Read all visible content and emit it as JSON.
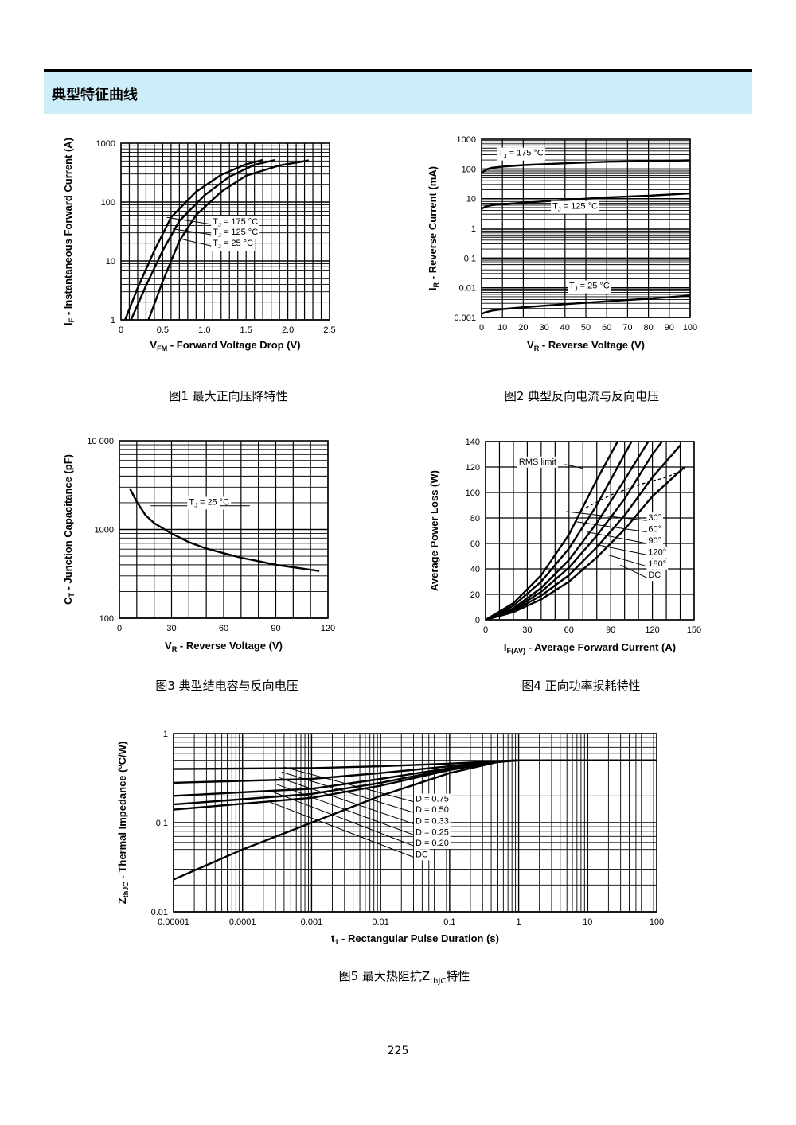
{
  "header": {
    "title": "典型特征曲线"
  },
  "page_number": "225",
  "chart_data": [
    {
      "id": "fig1",
      "type": "line",
      "caption": "图1  最大正向压降特性",
      "xlabel_main": "V",
      "xlabel_sub": "FM",
      "xlabel_rest": " - Forward Voltage Drop (V)",
      "ylabel_main": "I",
      "ylabel_sub": "F",
      "ylabel_rest": " - Instantaneous Forward Current (A)",
      "xlim": [
        0,
        2.5
      ],
      "ylim": [
        1,
        1000
      ],
      "yscale": "log",
      "x_ticks": [
        {
          "v": 0,
          "label": "0"
        },
        {
          "v": 0.5,
          "label": "0.5"
        },
        {
          "v": 1.0,
          "label": "1.0"
        },
        {
          "v": 1.5,
          "label": "1.5"
        },
        {
          "v": 2.0,
          "label": "2.0"
        },
        {
          "v": 2.5,
          "label": "2.5"
        }
      ],
      "y_ticks": [
        {
          "v": 1,
          "label": "1"
        },
        {
          "v": 10,
          "label": "10"
        },
        {
          "v": 100,
          "label": "100"
        },
        {
          "v": 1000,
          "label": "1000"
        }
      ],
      "grid": true,
      "series": [
        {
          "name": "TJ = 175 °C",
          "x": [
            0.05,
            0.2,
            0.4,
            0.6,
            0.9,
            1.2,
            1.5,
            1.7
          ],
          "y": [
            1,
            3.5,
            15,
            55,
            150,
            290,
            440,
            520
          ]
        },
        {
          "name": "TJ = 125 °C",
          "x": [
            0.12,
            0.3,
            0.5,
            0.7,
            1.0,
            1.3,
            1.6,
            1.85
          ],
          "y": [
            1,
            3.8,
            15,
            48,
            130,
            270,
            430,
            520
          ]
        },
        {
          "name": "TJ = 25 °C",
          "x": [
            0.33,
            0.5,
            0.7,
            0.9,
            1.2,
            1.5,
            1.9,
            2.25
          ],
          "y": [
            1,
            4.5,
            22,
            60,
            150,
            280,
            420,
            510
          ]
        }
      ],
      "annotations": [
        {
          "main": "T",
          "sub": "J",
          "rest": " = 175 °C",
          "x": 1.1,
          "y": 42
        },
        {
          "main": "T",
          "sub": "J",
          "rest": " = 125 °C",
          "x": 1.1,
          "y": 28
        },
        {
          "main": "T",
          "sub": "J",
          "rest": " = 25 °C",
          "x": 1.1,
          "y": 18
        }
      ]
    },
    {
      "id": "fig2",
      "type": "line",
      "caption": "图2  典型反向电流与反向电压",
      "xlabel_main": "V",
      "xlabel_sub": "R",
      "xlabel_rest": " - Reverse Voltage (V)",
      "ylabel_main": "I",
      "ylabel_sub": "R",
      "ylabel_rest": " - Reverse Current (mA)",
      "xlim": [
        0,
        100
      ],
      "ylim": [
        0.001,
        1000
      ],
      "yscale": "log",
      "x_ticks": [
        {
          "v": 0,
          "label": "0"
        },
        {
          "v": 10,
          "label": "10"
        },
        {
          "v": 20,
          "label": "20"
        },
        {
          "v": 30,
          "label": "30"
        },
        {
          "v": 40,
          "label": "40"
        },
        {
          "v": 50,
          "label": "50"
        },
        {
          "v": 60,
          "label": "60"
        },
        {
          "v": 70,
          "label": "70"
        },
        {
          "v": 80,
          "label": "80"
        },
        {
          "v": 90,
          "label": "90"
        },
        {
          "v": 100,
          "label": "100"
        }
      ],
      "y_ticks": [
        {
          "v": 0.001,
          "label": "0.001"
        },
        {
          "v": 0.01,
          "label": "0.01"
        },
        {
          "v": 0.1,
          "label": "0.1"
        },
        {
          "v": 1,
          "label": "1"
        },
        {
          "v": 10,
          "label": "10"
        },
        {
          "v": 100,
          "label": "100"
        },
        {
          "v": 1000,
          "label": "1000"
        }
      ],
      "grid": true,
      "series": [
        {
          "name": "TJ = 175 °C",
          "x": [
            0,
            2,
            5,
            10,
            20,
            40,
            60,
            80,
            100
          ],
          "y": [
            70,
            95,
            110,
            120,
            135,
            155,
            175,
            185,
            195
          ]
        },
        {
          "name": "TJ = 125 °C",
          "x": [
            0,
            2,
            5,
            10,
            20,
            40,
            60,
            80,
            100
          ],
          "y": [
            4.5,
            5.5,
            6.0,
            6.5,
            7.3,
            9,
            11,
            12.5,
            15
          ]
        },
        {
          "name": "TJ = 25 °C",
          "x": [
            0,
            2,
            5,
            10,
            20,
            40,
            60,
            80,
            100
          ],
          "y": [
            0.0013,
            0.0015,
            0.0017,
            0.0019,
            0.0022,
            0.0028,
            0.0035,
            0.0043,
            0.0055
          ]
        }
      ],
      "annotations": [
        {
          "main": "T",
          "sub": "J",
          "rest": " = 175 °C",
          "x": 8,
          "y": 280
        },
        {
          "main": "T",
          "sub": "J",
          "rest": " = 125 °C",
          "x": 34,
          "y": 4.5
        },
        {
          "main": "T",
          "sub": "J",
          "rest": " = 25 °C",
          "x": 42,
          "y": 0.0095
        }
      ]
    },
    {
      "id": "fig3",
      "type": "line",
      "caption": "图3  典型结电容与反向电压",
      "xlabel_main": "V",
      "xlabel_sub": "R",
      "xlabel_rest": " - Reverse Voltage (V)",
      "ylabel_main": "C",
      "ylabel_sub": "T",
      "ylabel_rest": " - Junction Capacitance (pF)",
      "xlim": [
        0,
        120
      ],
      "ylim": [
        100,
        10000
      ],
      "yscale": "log",
      "x_ticks": [
        {
          "v": 0,
          "label": "0"
        },
        {
          "v": 30,
          "label": "30"
        },
        {
          "v": 60,
          "label": "60"
        },
        {
          "v": 90,
          "label": "90"
        },
        {
          "v": 120,
          "label": "120"
        }
      ],
      "y_ticks": [
        {
          "v": 100,
          "label": "100"
        },
        {
          "v": 1000,
          "label": "1000"
        },
        {
          "v": 10000,
          "label": "10 000"
        }
      ],
      "grid": true,
      "series": [
        {
          "name": "TJ = 25 °C",
          "x": [
            6,
            10,
            15,
            20,
            30,
            40,
            50,
            60,
            70,
            80,
            90,
            100,
            115
          ],
          "y": [
            2900,
            2050,
            1450,
            1180,
            900,
            720,
            610,
            540,
            480,
            440,
            400,
            375,
            340
          ]
        }
      ],
      "annotations": [
        {
          "main": "T",
          "sub": "J",
          "rest": " = 25 °C",
          "x": 40,
          "y": 1900
        }
      ]
    },
    {
      "id": "fig4",
      "type": "line",
      "caption": "图4  正向功率损耗特性",
      "xlabel_main": "I",
      "xlabel_sub": "F(AV)",
      "xlabel_rest": " - Average Forward Current (A)",
      "ylabel_main": "Average Power Loss (W)",
      "ylabel_sub": "",
      "ylabel_rest": "",
      "xlim": [
        0,
        150
      ],
      "ylim": [
        0,
        140
      ],
      "x_ticks": [
        {
          "v": 0,
          "label": "0"
        },
        {
          "v": 30,
          "label": "30"
        },
        {
          "v": 60,
          "label": "60"
        },
        {
          "v": 90,
          "label": "90"
        },
        {
          "v": 120,
          "label": "120"
        },
        {
          "v": 150,
          "label": "150"
        }
      ],
      "y_ticks": [
        {
          "v": 0,
          "label": "0"
        },
        {
          "v": 20,
          "label": "20"
        },
        {
          "v": 40,
          "label": "40"
        },
        {
          "v": 60,
          "label": "60"
        },
        {
          "v": 80,
          "label": "80"
        },
        {
          "v": 100,
          "label": "100"
        },
        {
          "v": 120,
          "label": "120"
        },
        {
          "v": 140,
          "label": "140"
        }
      ],
      "grid": true,
      "series": [
        {
          "name": "30°",
          "x": [
            0,
            20,
            40,
            60,
            80,
            95
          ],
          "y": [
            0,
            13,
            35,
            67,
            110,
            140
          ]
        },
        {
          "name": "60°",
          "x": [
            0,
            20,
            40,
            60,
            80,
            100,
            105
          ],
          "y": [
            0,
            11,
            30,
            56,
            90,
            130,
            140
          ]
        },
        {
          "name": "90°",
          "x": [
            0,
            20,
            40,
            60,
            80,
            100,
            117
          ],
          "y": [
            0,
            9,
            25,
            47,
            76,
            110,
            140
          ]
        },
        {
          "name": "120°",
          "x": [
            0,
            20,
            40,
            60,
            80,
            100,
            120,
            127
          ],
          "y": [
            0,
            8,
            22,
            41,
            66,
            95,
            130,
            140
          ]
        },
        {
          "name": "180°",
          "x": [
            0,
            20,
            40,
            60,
            80,
            100,
            120,
            140
          ],
          "y": [
            0,
            7,
            19,
            35,
            57,
            82,
            112,
            137
          ]
        },
        {
          "name": "DC",
          "x": [
            0,
            20,
            40,
            60,
            80,
            100,
            120,
            143
          ],
          "y": [
            0,
            6,
            16,
            30,
            49,
            71,
            97,
            120
          ]
        },
        {
          "name": "RMS limit",
          "x": [
            72,
            90,
            110,
            130,
            143
          ],
          "y": [
            88,
            98,
            106,
            112,
            118
          ],
          "dashed": true
        }
      ],
      "annotations": [
        {
          "main": "RMS limit",
          "sub": "",
          "rest": "",
          "x": 24,
          "y": 122
        },
        {
          "main": "30°",
          "sub": "",
          "rest": "",
          "x": 117,
          "y": 78
        },
        {
          "main": "60°",
          "sub": "",
          "rest": "",
          "x": 117,
          "y": 69
        },
        {
          "main": "90°",
          "sub": "",
          "rest": "",
          "x": 117,
          "y": 60
        },
        {
          "main": "120°",
          "sub": "",
          "rest": "",
          "x": 117,
          "y": 51
        },
        {
          "main": "180°",
          "sub": "",
          "rest": "",
          "x": 117,
          "y": 42
        },
        {
          "main": "DC",
          "sub": "",
          "rest": "",
          "x": 117,
          "y": 33
        }
      ]
    },
    {
      "id": "fig5",
      "type": "line",
      "caption_main": "图5  最大热阻抗Z",
      "caption_sub": "thJC",
      "caption_rest": "特性",
      "xlabel_main": "t",
      "xlabel_sub": "1",
      "xlabel_rest": " - Rectangular Pulse Duration (s)",
      "ylabel_main": "Z",
      "ylabel_sub": "thJC",
      "ylabel_rest": " - Thermal Impedance (°C/W)",
      "xlim": [
        1e-05,
        100
      ],
      "ylim": [
        0.01,
        1
      ],
      "xscale": "log",
      "yscale": "log",
      "x_ticks": [
        {
          "v": 1e-05,
          "label": "0.00001"
        },
        {
          "v": 0.0001,
          "label": "0.0001"
        },
        {
          "v": 0.001,
          "label": "0.001"
        },
        {
          "v": 0.01,
          "label": "0.01"
        },
        {
          "v": 0.1,
          "label": "0.1"
        },
        {
          "v": 1,
          "label": "1"
        },
        {
          "v": 10,
          "label": "10"
        },
        {
          "v": 100,
          "label": "100"
        }
      ],
      "y_ticks": [
        {
          "v": 0.01,
          "label": "0.01"
        },
        {
          "v": 0.1,
          "label": "0.1"
        },
        {
          "v": 1,
          "label": "1"
        }
      ],
      "grid": true,
      "series": [
        {
          "name": "D = 0.75",
          "x": [
            1e-05,
            0.001,
            0.01,
            0.1,
            0.5,
            1,
            100
          ],
          "y": [
            0.4,
            0.41,
            0.43,
            0.46,
            0.49,
            0.5,
            0.5
          ]
        },
        {
          "name": "D = 0.50",
          "x": [
            1e-05,
            0.001,
            0.01,
            0.1,
            0.5,
            1,
            100
          ],
          "y": [
            0.28,
            0.31,
            0.36,
            0.43,
            0.49,
            0.5,
            0.5
          ]
        },
        {
          "name": "D = 0.33",
          "x": [
            1e-05,
            0.001,
            0.01,
            0.1,
            0.5,
            1,
            100
          ],
          "y": [
            0.2,
            0.24,
            0.31,
            0.41,
            0.48,
            0.5,
            0.5
          ]
        },
        {
          "name": "D = 0.25",
          "x": [
            1e-05,
            0.001,
            0.01,
            0.1,
            0.5,
            1,
            100
          ],
          "y": [
            0.16,
            0.21,
            0.28,
            0.4,
            0.48,
            0.5,
            0.5
          ]
        },
        {
          "name": "D = 0.20",
          "x": [
            1e-05,
            0.001,
            0.01,
            0.1,
            0.5,
            1,
            100
          ],
          "y": [
            0.14,
            0.19,
            0.26,
            0.39,
            0.48,
            0.5,
            0.5
          ]
        },
        {
          "name": "DC",
          "x": [
            1e-05,
            0.0001,
            0.001,
            0.01,
            0.1,
            0.5,
            1,
            100
          ],
          "y": [
            0.023,
            0.05,
            0.1,
            0.2,
            0.36,
            0.48,
            0.5,
            0.5
          ]
        }
      ],
      "annotations": [
        {
          "main": "D = 0.75",
          "sub": "",
          "rest": "",
          "x": 0.032,
          "y": 0.172
        },
        {
          "main": "D = 0.50",
          "sub": "",
          "rest": "",
          "x": 0.032,
          "y": 0.13
        },
        {
          "main": "D = 0.33",
          "sub": "",
          "rest": "",
          "x": 0.032,
          "y": 0.097
        },
        {
          "main": "D = 0.25",
          "sub": "",
          "rest": "",
          "x": 0.032,
          "y": 0.073
        },
        {
          "main": "D = 0.20",
          "sub": "",
          "rest": "",
          "x": 0.032,
          "y": 0.055
        },
        {
          "main": "DC",
          "sub": "",
          "rest": "",
          "x": 0.032,
          "y": 0.041
        }
      ]
    }
  ]
}
